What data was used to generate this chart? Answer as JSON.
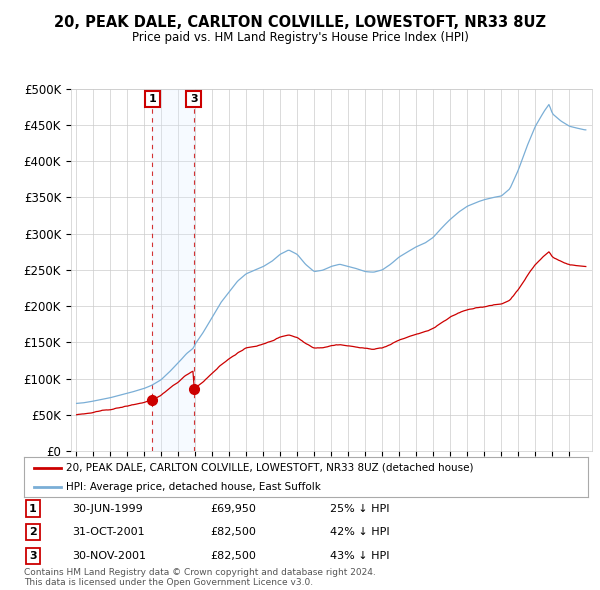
{
  "title": "20, PEAK DALE, CARLTON COLVILLE, LOWESTOFT, NR33 8UZ",
  "subtitle": "Price paid vs. HM Land Registry's House Price Index (HPI)",
  "legend_line1": "20, PEAK DALE, CARLTON COLVILLE, LOWESTOFT, NR33 8UZ (detached house)",
  "legend_line2": "HPI: Average price, detached house, East Suffolk",
  "footnote": "Contains HM Land Registry data © Crown copyright and database right 2024.\nThis data is licensed under the Open Government Licence v3.0.",
  "table": [
    {
      "num": "1",
      "date": "30-JUN-1999",
      "price": "£69,950",
      "hpi": "25% ↓ HPI"
    },
    {
      "num": "2",
      "date": "31-OCT-2001",
      "price": "£82,500",
      "hpi": "42% ↓ HPI"
    },
    {
      "num": "3",
      "date": "30-NOV-2001",
      "price": "£82,500",
      "hpi": "43% ↓ HPI"
    }
  ],
  "sale1_year": 1999.5,
  "sale1_price": 69950,
  "sale2_year": 2001.833,
  "sale2_price": 82500,
  "sale3_year": 2001.917,
  "sale3_price": 82500,
  "vline1": 1999.5,
  "vline2": 2001.917,
  "ylim": [
    0,
    500000
  ],
  "yticks": [
    0,
    50000,
    100000,
    150000,
    200000,
    250000,
    300000,
    350000,
    400000,
    450000,
    500000
  ],
  "xlim_start": 1994.7,
  "xlim_end": 2025.3,
  "red_color": "#cc0000",
  "blue_color": "#7aaed6",
  "shade_color": "#ddeeff",
  "bg_color": "#ffffff",
  "grid_color": "#cccccc"
}
